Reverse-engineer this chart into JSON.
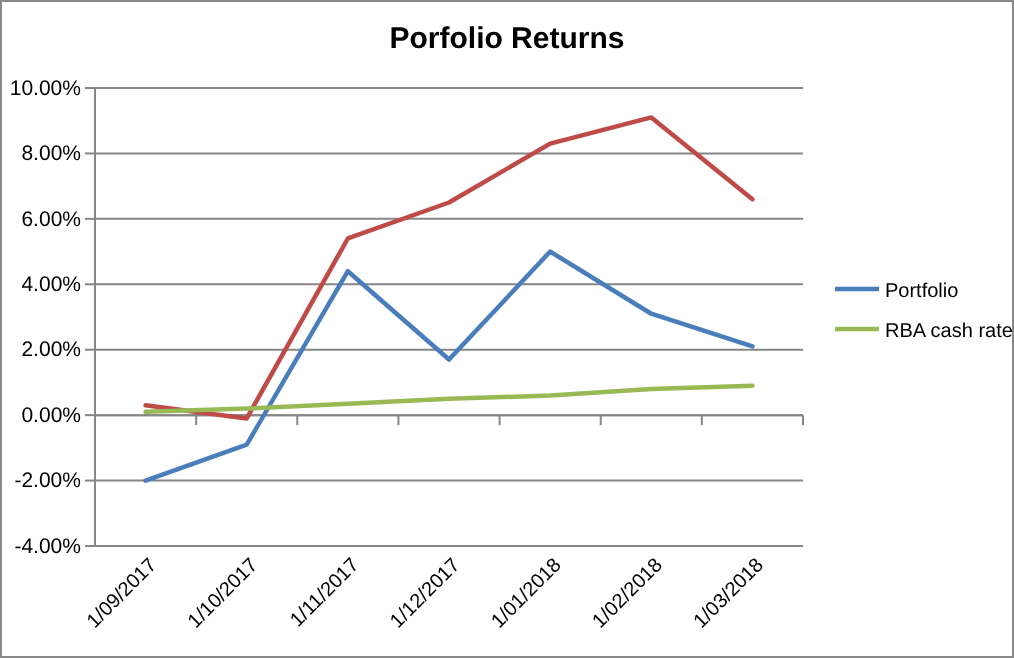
{
  "chart_data": {
    "type": "line",
    "title": "Porfolio Returns",
    "categories": [
      "1/09/2017",
      "1/10/2017",
      "1/11/2017",
      "1/12/2017",
      "1/01/2018",
      "1/02/2018",
      "1/03/2018"
    ],
    "series": [
      {
        "name": "Portfolio",
        "color": "#4a7ebb",
        "values": [
          -2.0,
          -0.9,
          4.4,
          1.7,
          5.0,
          3.1,
          2.1
        ]
      },
      {
        "color": "#be4b48",
        "values": [
          0.3,
          -0.1,
          5.4,
          6.5,
          8.3,
          9.1,
          6.6
        ]
      },
      {
        "name": "RBA cash rate",
        "color": "#98b954",
        "values": [
          0.1,
          0.2,
          0.35,
          0.5,
          0.6,
          0.8,
          0.9
        ]
      }
    ],
    "ylim": [
      -4,
      10
    ],
    "yticks": [
      {
        "value": -4,
        "label": "-4.00%"
      },
      {
        "value": -2,
        "label": "-2.00%"
      },
      {
        "value": 0,
        "label": "0.00%"
      },
      {
        "value": 2,
        "label": "2.00%"
      },
      {
        "value": 4,
        "label": "4.00%"
      },
      {
        "value": 6,
        "label": "6.00%"
      },
      {
        "value": 8,
        "label": "8.00%"
      },
      {
        "value": 10,
        "label": "10.00%"
      }
    ],
    "grid": "y",
    "legend": "right"
  }
}
